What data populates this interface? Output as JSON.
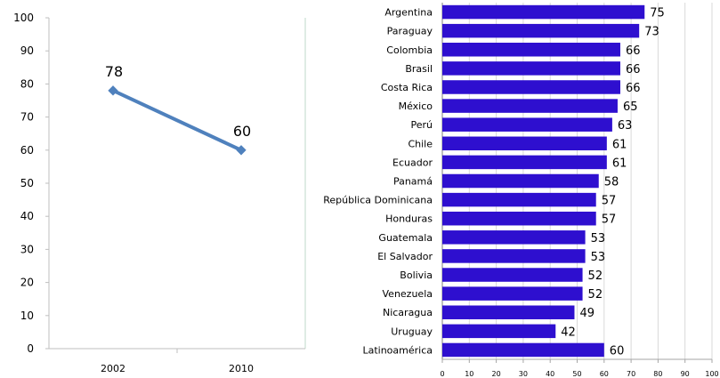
{
  "chart_data": [
    {
      "type": "line",
      "categories": [
        "2002",
        "2010"
      ],
      "series": [
        {
          "values": [
            78,
            60
          ],
          "color": "#4f81bd"
        }
      ],
      "yticks": [
        "0",
        "10",
        "20",
        "30",
        "40",
        "50",
        "60",
        "70",
        "80",
        "90",
        "100"
      ],
      "data_labels": [
        "78",
        "60"
      ],
      "ylim": [
        0,
        100
      ],
      "grid": false
    },
    {
      "type": "bar",
      "orientation": "horizontal",
      "categories": [
        "Argentina",
        "Paraguay",
        "Colombia",
        "Brasil",
        "Costa Rica",
        "México",
        "Perú",
        "Chile",
        "Ecuador",
        "Panamá",
        "República Dominicana",
        "Honduras",
        "Guatemala",
        "El Salvador",
        "Bolivia",
        "Venezuela",
        "Nicaragua",
        "Uruguay",
        "Latinoamérica"
      ],
      "values": [
        75,
        73,
        66,
        66,
        66,
        65,
        63,
        61,
        61,
        58,
        57,
        57,
        53,
        53,
        52,
        52,
        49,
        42,
        60
      ],
      "data_labels": [
        "75",
        "73",
        "66",
        "66",
        "66",
        "65",
        "63",
        "61",
        "61",
        "58",
        "57",
        "57",
        "53",
        "53",
        "52",
        "52",
        "49",
        "42",
        "60"
      ],
      "xticks": [
        "0",
        "10",
        "20",
        "30",
        "40",
        "50",
        "60",
        "70",
        "80",
        "90",
        "100"
      ],
      "xlim": [
        0,
        100
      ],
      "bar_color": "#2e0fcf",
      "grid": true
    }
  ]
}
